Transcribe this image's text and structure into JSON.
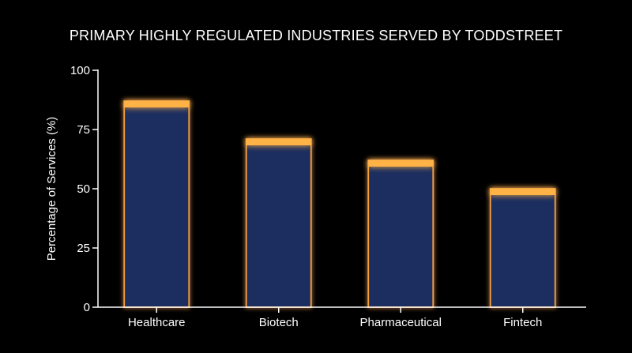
{
  "colors": {
    "background": "#000000",
    "bar_fill": "#1e2f5e",
    "bar_outline": "#f5a03c",
    "bar_cap": "#ffb347",
    "text": "#ffffff"
  },
  "chart_data": {
    "type": "bar",
    "title": "PRIMARY HIGHLY REGULATED INDUSTRIES SERVED BY TODDSTREET",
    "xlabel": "",
    "ylabel": "Percentage of Services (%)",
    "categories": [
      "Healthcare",
      "Biotech",
      "Pharmaceutical",
      "Fintech"
    ],
    "values": [
      87,
      71,
      62,
      50
    ],
    "ylim": [
      0,
      100
    ],
    "yticks": [
      0,
      25,
      50,
      75,
      100
    ],
    "ytick_labels": [
      "0",
      "25",
      "50",
      "75",
      "100"
    ],
    "grid": false,
    "legend": "none"
  }
}
